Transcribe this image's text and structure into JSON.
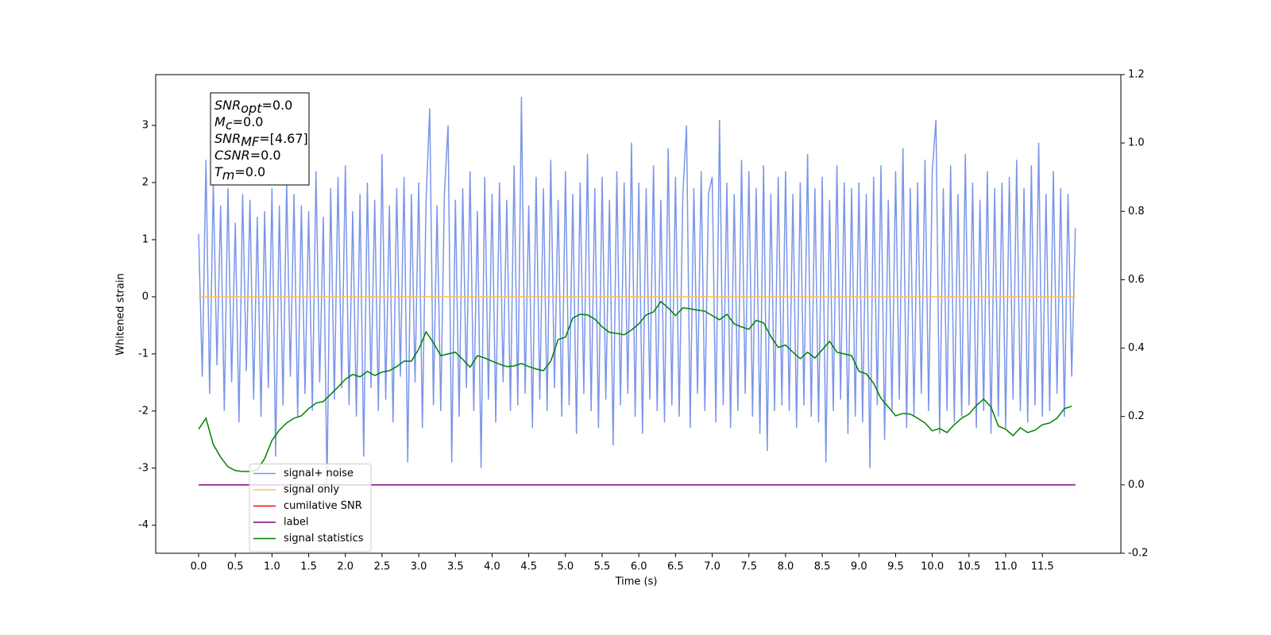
{
  "chart_data": {
    "type": "line",
    "xlabel": "Time (s)",
    "ylabel": "Whitened strain",
    "xlim": [
      -0.585,
      12.57
    ],
    "ylim": [
      -4.49,
      3.89
    ],
    "y2lim": [
      -0.2,
      1.2
    ],
    "xticks": [
      {
        "value": 0,
        "label": "0.0"
      },
      0.5,
      {
        "value": 1,
        "label": "1.0"
      },
      1.5,
      {
        "value": 2,
        "label": "2.0"
      },
      2.5,
      {
        "value": 3,
        "label": "3.0"
      },
      3.5,
      {
        "value": 4,
        "label": "4.0"
      },
      4.5,
      {
        "value": 5,
        "label": "5.0"
      },
      5.5,
      {
        "value": 6,
        "label": "6.0"
      },
      6.5,
      {
        "value": 7,
        "label": "7.0"
      },
      7.5,
      {
        "value": 8,
        "label": "8.0"
      },
      8.5,
      {
        "value": 9,
        "label": "9.0"
      },
      9.5,
      {
        "value": 10,
        "label": "10.0"
      },
      10.5,
      {
        "value": 11,
        "label": "11.0"
      },
      11.5
    ],
    "yticks": [
      -4,
      -3,
      -2,
      -1,
      0,
      1,
      2,
      3
    ],
    "y2ticks": [
      -0.2,
      {
        "value": 0,
        "label": "0.0"
      },
      0.2,
      0.4,
      0.6,
      0.8,
      {
        "value": 1,
        "label": "1.0"
      },
      1.2
    ],
    "legend": "lower left",
    "annotation": [
      {
        "text": "SNR",
        "sub": "opt",
        "suffix": "=0.0"
      },
      {
        "text": "M",
        "sub": "c",
        "suffix": "=0.0"
      },
      {
        "text": "SNR",
        "sub": "MF",
        "suffix": "=[4.67]"
      },
      {
        "text": "CSNR",
        "sub": "",
        "suffix": "=0.0"
      },
      {
        "text": "T",
        "sub": "m",
        "suffix": "=0.0"
      }
    ],
    "series": [
      {
        "name": "signal+ noise",
        "color": "#7b96e8",
        "x": [
          0,
          0.05,
          0.1,
          0.15,
          0.2,
          0.25,
          0.3,
          0.35,
          0.4,
          0.45,
          0.5,
          0.55,
          0.6,
          0.65,
          0.7,
          0.75,
          0.8,
          0.85,
          0.9,
          0.95,
          1,
          1.05,
          1.1,
          1.15,
          1.2,
          1.25,
          1.3,
          1.35,
          1.4,
          1.45,
          1.5,
          1.55,
          1.6,
          1.65,
          1.7,
          1.75,
          1.8,
          1.85,
          1.9,
          1.95,
          2,
          2.05,
          2.1,
          2.15,
          2.2,
          2.25,
          2.3,
          2.35,
          2.4,
          2.45,
          2.5,
          2.55,
          2.6,
          2.65,
          2.7,
          2.75,
          2.8,
          2.85,
          2.9,
          2.95,
          3,
          3.05,
          3.1,
          3.15,
          3.2,
          3.25,
          3.3,
          3.35,
          3.4,
          3.45,
          3.5,
          3.55,
          3.6,
          3.65,
          3.7,
          3.75,
          3.8,
          3.85,
          3.9,
          3.95,
          4,
          4.05,
          4.1,
          4.15,
          4.2,
          4.25,
          4.3,
          4.35,
          4.4,
          4.45,
          4.5,
          4.55,
          4.6,
          4.65,
          4.7,
          4.75,
          4.8,
          4.85,
          4.9,
          4.95,
          5,
          5.05,
          5.1,
          5.15,
          5.2,
          5.25,
          5.3,
          5.35,
          5.4,
          5.45,
          5.5,
          5.55,
          5.6,
          5.65,
          5.7,
          5.75,
          5.8,
          5.85,
          5.9,
          5.95,
          6,
          6.05,
          6.1,
          6.15,
          6.2,
          6.25,
          6.3,
          6.35,
          6.4,
          6.45,
          6.5,
          6.55,
          6.6,
          6.65,
          6.7,
          6.75,
          6.8,
          6.85,
          6.9,
          6.95,
          7,
          7.05,
          7.1,
          7.15,
          7.2,
          7.25,
          7.3,
          7.35,
          7.4,
          7.45,
          7.5,
          7.55,
          7.6,
          7.65,
          7.7,
          7.75,
          7.8,
          7.85,
          7.9,
          7.95,
          8,
          8.05,
          8.1,
          8.15,
          8.2,
          8.25,
          8.3,
          8.35,
          8.4,
          8.45,
          8.5,
          8.55,
          8.6,
          8.65,
          8.7,
          8.75,
          8.8,
          8.85,
          8.9,
          8.95,
          9,
          9.05,
          9.1,
          9.15,
          9.2,
          9.25,
          9.3,
          9.35,
          9.4,
          9.45,
          9.5,
          9.55,
          9.6,
          9.65,
          9.7,
          9.75,
          9.8,
          9.85,
          9.9,
          9.95,
          10,
          10.05,
          10.1,
          10.15,
          10.2,
          10.25,
          10.3,
          10.35,
          10.4,
          10.45,
          10.5,
          10.55,
          10.6,
          10.65,
          10.7,
          10.75,
          10.8,
          10.85,
          10.9,
          10.95,
          11,
          11.05,
          11.1,
          11.15,
          11.2,
          11.25,
          11.3,
          11.35,
          11.4,
          11.45,
          11.5,
          11.55,
          11.6,
          11.65,
          11.7,
          11.75,
          11.8,
          11.85,
          11.9,
          11.95
        ],
        "values": [
          1.1,
          -1.4,
          2.4,
          -1.7,
          2.0,
          -1.2,
          1.6,
          -2.0,
          1.9,
          -1.5,
          1.3,
          -2.2,
          1.8,
          -1.3,
          1.7,
          -1.8,
          1.4,
          -2.1,
          1.5,
          -1.6,
          1.9,
          -2.8,
          1.6,
          -1.9,
          2.0,
          -1.4,
          1.8,
          -2.1,
          1.6,
          -1.7,
          1.5,
          -2.0,
          2.2,
          -1.5,
          1.4,
          -3.3,
          1.9,
          -1.8,
          2.1,
          -1.6,
          2.3,
          -1.9,
          1.5,
          -2.1,
          1.8,
          -2.8,
          2.0,
          -1.6,
          1.7,
          -2.0,
          2.5,
          -1.8,
          1.6,
          -2.2,
          1.9,
          -1.4,
          2.1,
          -2.9,
          1.8,
          -1.5,
          2.0,
          -2.3,
          1.7,
          3.3,
          -1.9,
          1.6,
          -2.0,
          1.8,
          3.0,
          -2.9,
          1.7,
          -2.1,
          1.9,
          -1.6,
          2.2,
          -2.0,
          1.5,
          -3.0,
          2.1,
          -1.8,
          1.8,
          -2.2,
          2.0,
          -1.5,
          1.7,
          -2.0,
          2.3,
          -1.9,
          3.5,
          -1.7,
          1.6,
          -2.3,
          2.1,
          -1.8,
          1.9,
          -2.0,
          2.4,
          -1.6,
          1.7,
          -2.1,
          2.2,
          -1.9,
          1.8,
          -2.4,
          2.0,
          -1.7,
          2.5,
          -2.0,
          1.9,
          -2.3,
          2.1,
          -1.8,
          1.7,
          -2.6,
          2.2,
          -1.9,
          2.0,
          -1.7,
          2.7,
          -2.1,
          2.0,
          -2.4,
          1.9,
          -1.8,
          2.3,
          -2.0,
          1.7,
          -2.2,
          2.6,
          -1.9,
          2.1,
          -2.1,
          1.8,
          3.0,
          -2.3,
          1.9,
          -1.7,
          2.2,
          -2.0,
          1.8,
          2.1,
          -2.2,
          3.1,
          -1.9,
          2.0,
          -2.3,
          1.8,
          -2.0,
          2.4,
          -1.7,
          2.2,
          -2.1,
          1.9,
          -2.4,
          2.3,
          -2.7,
          1.8,
          -2.0,
          2.1,
          -1.9,
          2.2,
          -2.0,
          1.8,
          -2.3,
          2.0,
          -1.9,
          2.5,
          -2.1,
          1.9,
          -2.2,
          2.1,
          -2.9,
          1.7,
          -2.0,
          2.3,
          -1.8,
          2.0,
          -2.4,
          1.9,
          -2.1,
          2.0,
          -2.2,
          1.8,
          -3.0,
          2.1,
          -1.9,
          2.3,
          -2.5,
          1.7,
          -2.0,
          2.2,
          -1.8,
          2.6,
          -2.3,
          1.9,
          -2.1,
          2.0,
          -1.7,
          2.4,
          -2.0,
          2.2,
          3.1,
          -2.4,
          1.9,
          -2.0,
          2.3,
          -2.2,
          1.8,
          -2.1,
          2.5,
          -1.9,
          2.0,
          -2.3,
          1.7,
          -2.0,
          2.2,
          -2.4,
          1.9,
          -2.1,
          2.0,
          -2.3,
          2.1,
          -1.8,
          2.4,
          -2.0,
          1.9,
          -2.2,
          2.3,
          -1.9,
          2.7,
          -2.1,
          1.8,
          -2.0,
          2.2,
          -1.7,
          1.9,
          -2.1,
          1.8,
          -1.4,
          1.2
        ]
      },
      {
        "name": "signal only",
        "color": "#ffbf60",
        "x": [
          0,
          11.95
        ],
        "values": [
          0,
          0
        ]
      },
      {
        "name": "cumilative SNR",
        "color": "#ff0000",
        "x": [],
        "values": []
      },
      {
        "name": "label",
        "color": "#800080",
        "axis": "y2",
        "x": [
          0,
          11.95
        ],
        "values": [
          0,
          0
        ]
      },
      {
        "name": "signal statistics",
        "color": "#008000",
        "axis": "y2",
        "x": [
          0,
          0.1,
          0.2,
          0.3,
          0.4,
          0.5,
          0.6,
          0.7,
          0.8,
          0.9,
          1,
          1.1,
          1.2,
          1.3,
          1.4,
          1.5,
          1.6,
          1.7,
          1.8,
          1.9,
          2,
          2.1,
          2.2,
          2.3,
          2.4,
          2.5,
          2.6,
          2.7,
          2.8,
          2.9,
          3,
          3.1,
          3.2,
          3.3,
          3.4,
          3.5,
          3.6,
          3.7,
          3.8,
          3.9,
          4,
          4.1,
          4.2,
          4.3,
          4.4,
          4.5,
          4.6,
          4.7,
          4.8,
          4.9,
          5,
          5.1,
          5.2,
          5.3,
          5.4,
          5.5,
          5.6,
          5.7,
          5.8,
          5.9,
          6,
          6.1,
          6.2,
          6.3,
          6.4,
          6.5,
          6.6,
          6.7,
          6.8,
          6.9,
          7,
          7.1,
          7.2,
          7.3,
          7.4,
          7.5,
          7.6,
          7.7,
          7.8,
          7.9,
          8,
          8.1,
          8.2,
          8.3,
          8.4,
          8.5,
          8.6,
          8.7,
          8.8,
          8.9,
          9,
          9.1,
          9.2,
          9.3,
          9.4,
          9.5,
          9.6,
          9.7,
          9.8,
          9.9,
          10,
          10.1,
          10.2,
          10.3,
          10.4,
          10.5,
          10.6,
          10.7,
          10.8,
          10.9,
          11,
          11.1,
          11.2,
          11.3,
          11.4,
          11.5,
          11.6,
          11.7,
          11.8,
          11.9
        ],
        "values": [
          0.163,
          0.195,
          0.118,
          0.081,
          0.053,
          0.042,
          0.039,
          0.039,
          0.044,
          0.077,
          0.13,
          0.16,
          0.181,
          0.195,
          0.202,
          0.223,
          0.239,
          0.244,
          0.265,
          0.286,
          0.309,
          0.323,
          0.316,
          0.332,
          0.32,
          0.33,
          0.334,
          0.346,
          0.362,
          0.362,
          0.397,
          0.448,
          0.416,
          0.378,
          0.383,
          0.388,
          0.367,
          0.344,
          0.378,
          0.371,
          0.362,
          0.353,
          0.346,
          0.348,
          0.355,
          0.346,
          0.339,
          0.334,
          0.362,
          0.425,
          0.432,
          0.488,
          0.499,
          0.497,
          0.485,
          0.462,
          0.446,
          0.443,
          0.439,
          0.453,
          0.471,
          0.497,
          0.506,
          0.536,
          0.518,
          0.495,
          0.518,
          0.515,
          0.511,
          0.508,
          0.495,
          0.483,
          0.499,
          0.471,
          0.462,
          0.455,
          0.481,
          0.474,
          0.434,
          0.402,
          0.409,
          0.388,
          0.369,
          0.388,
          0.371,
          0.395,
          0.42,
          0.388,
          0.383,
          0.378,
          0.332,
          0.325,
          0.297,
          0.253,
          0.228,
          0.202,
          0.209,
          0.207,
          0.195,
          0.181,
          0.158,
          0.165,
          0.153,
          0.176,
          0.195,
          0.207,
          0.232,
          0.251,
          0.228,
          0.172,
          0.163,
          0.144,
          0.167,
          0.153,
          0.16,
          0.176,
          0.181,
          0.195,
          0.223,
          0.23
        ]
      }
    ]
  }
}
